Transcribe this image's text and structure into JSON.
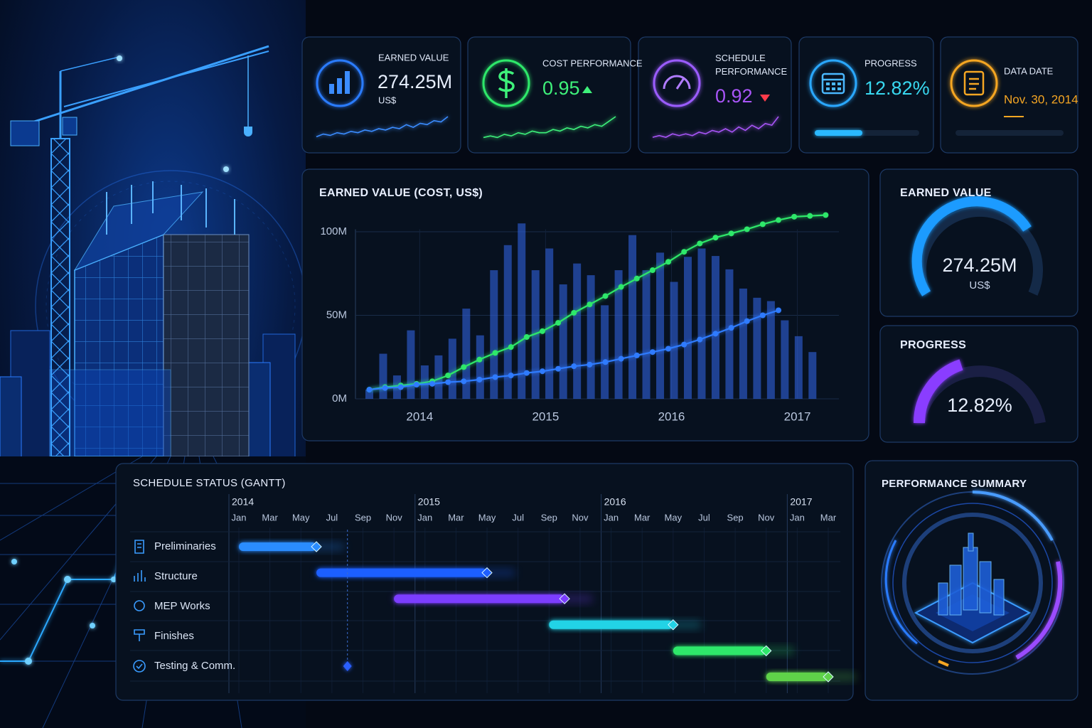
{
  "kpis": [
    {
      "label": "EARNED VALUE",
      "value": "274.25M",
      "unit": "US$",
      "trend": [
        3,
        5,
        4,
        6,
        5,
        7,
        6,
        8,
        7,
        9,
        8,
        10,
        9,
        12,
        10,
        13,
        12,
        15,
        14,
        18
      ]
    },
    {
      "label": "COST PERFORMANCE",
      "value": "0.95",
      "trend": [
        2,
        3,
        2,
        4,
        3,
        5,
        4,
        6,
        5,
        5,
        7,
        6,
        8,
        7,
        9,
        8,
        10,
        9,
        12,
        15
      ]
    },
    {
      "label": "SCHEDULE PERFORMANCE",
      "value": "0.92",
      "trend": [
        2,
        3,
        2,
        4,
        3,
        4,
        3,
        5,
        4,
        6,
        5,
        7,
        5,
        8,
        6,
        9,
        7,
        10,
        9,
        14
      ]
    },
    {
      "label": "PROGRESS",
      "value": "12.82%"
    },
    {
      "label": "DATA DATE",
      "value": "Nov. 30, 2014"
    }
  ],
  "chart_data": [
    {
      "type": "bar",
      "title": "EARNED VALUE (COST, US$)",
      "xlim": [
        2013.49,
        2017.33
      ],
      "xticks": [
        2014,
        2015,
        2016,
        2017
      ],
      "ylim": [
        0,
        110
      ],
      "yticks": [
        {
          "value": 0,
          "label": "0M"
        },
        {
          "value": 50,
          "label": "50M"
        },
        {
          "value": 100,
          "label": "100M"
        }
      ],
      "grid": true,
      "series": [
        {
          "type": "bar",
          "color": "#2f5fd8",
          "x": [
            2013.6,
            2013.71,
            2013.82,
            2013.93,
            2014.04,
            2014.15,
            2014.26,
            2014.37,
            2014.48,
            2014.59,
            2014.7,
            2014.81,
            2014.92,
            2015.03,
            2015.14,
            2015.25,
            2015.36,
            2015.47,
            2015.58,
            2015.69,
            2015.8,
            2015.91,
            2016.02,
            2016.13,
            2016.24,
            2016.35,
            2016.46,
            2016.57,
            2016.68,
            2016.79,
            2016.9,
            2017.01,
            2017.12
          ],
          "values": [
            5.5,
            27,
            14,
            41,
            20,
            26,
            36,
            54,
            38,
            77,
            92,
            105,
            77,
            90,
            68.5,
            81,
            74,
            56,
            77,
            98,
            77,
            87.5,
            70,
            85,
            90,
            85.5,
            77.5,
            66,
            60.5,
            58.5,
            47,
            37.5,
            28
          ]
        },
        {
          "type": "line",
          "color": "#2ee86a",
          "x": [
            2013.6,
            2013.725,
            2013.85,
            2013.975,
            2014.1,
            2014.225,
            2014.35,
            2014.475,
            2014.6,
            2014.725,
            2014.85,
            2014.975,
            2015.1,
            2015.225,
            2015.35,
            2015.475,
            2015.6,
            2015.725,
            2015.85,
            2015.975,
            2016.1,
            2016.225,
            2016.35,
            2016.475,
            2016.6,
            2016.725,
            2016.85,
            2016.975,
            2017.1,
            2017.225
          ],
          "values": [
            5.5,
            7,
            8,
            9,
            10.5,
            14,
            19,
            23.5,
            27.5,
            31,
            37,
            40.5,
            45.5,
            51.5,
            56.5,
            61.5,
            67,
            72,
            77,
            82,
            88,
            93,
            96.5,
            99,
            101.5,
            104.5,
            107,
            109,
            109.5,
            110
          ]
        },
        {
          "type": "line",
          "color": "#2f7bff",
          "x": [
            2013.6,
            2013.725,
            2013.85,
            2013.975,
            2014.1,
            2014.225,
            2014.35,
            2014.475,
            2014.6,
            2014.725,
            2014.85,
            2014.975,
            2015.1,
            2015.225,
            2015.35,
            2015.475,
            2015.6,
            2015.725,
            2015.85,
            2015.975,
            2016.1,
            2016.225,
            2016.35,
            2016.475,
            2016.6,
            2016.725,
            2016.85
          ],
          "values": [
            5.5,
            6.5,
            7,
            8.5,
            9,
            10,
            10.5,
            11.5,
            13,
            14,
            15.5,
            16.5,
            18,
            19.5,
            20.5,
            22,
            24,
            26,
            28,
            30,
            32.5,
            35.5,
            39,
            42.5,
            46.5,
            50,
            53
          ]
        }
      ]
    },
    {
      "type": "gantt",
      "title": "SCHEDULE STATUS (GANTT)",
      "xlim": [
        "2014-01",
        "2017-03"
      ],
      "year_ticks": [
        {
          "value": "2014-01",
          "label": "2014"
        },
        {
          "value": "2015-01",
          "label": "2015"
        },
        {
          "value": "2016-01",
          "label": "2016"
        },
        {
          "value": "2017-01",
          "label": "2017"
        }
      ],
      "xticks": [
        {
          "value": "2014-01",
          "label": "Jan"
        },
        {
          "value": "2014-03",
          "label": "Mar"
        },
        {
          "value": "2014-05",
          "label": "May"
        },
        {
          "value": "2014-07",
          "label": "Jul"
        },
        {
          "value": "2014-09",
          "label": "Sep"
        },
        {
          "value": "2014-11",
          "label": "Nov"
        },
        {
          "value": "2015-01",
          "label": "Jan"
        },
        {
          "value": "2015-03",
          "label": "Mar"
        },
        {
          "value": "2015-05",
          "label": "May"
        },
        {
          "value": "2015-07",
          "label": "Jul"
        },
        {
          "value": "2015-09",
          "label": "Sep"
        },
        {
          "value": "2015-11",
          "label": "Nov"
        },
        {
          "value": "2016-01",
          "label": "Jan"
        },
        {
          "value": "2016-03",
          "label": "Mar"
        },
        {
          "value": "2016-05",
          "label": "May"
        },
        {
          "value": "2016-07",
          "label": "Jul"
        },
        {
          "value": "2016-09",
          "label": "Sep"
        },
        {
          "value": "2016-11",
          "label": "Nov"
        },
        {
          "value": "2017-01",
          "label": "Jan"
        },
        {
          "value": "2017-03",
          "label": "Mar"
        }
      ],
      "tasks": [
        {
          "name": "Preliminaries",
          "start": "2014-01",
          "end": "2014-06",
          "color": "#2a8cff"
        },
        {
          "name": "Structure",
          "start": "2014-06",
          "end": "2015-05",
          "color": "#1f5fff"
        },
        {
          "name": "MEP Works",
          "start": "2014-11",
          "end": "2015-10",
          "color": "#7b3cff"
        },
        {
          "name": "Finishes",
          "start": "2015-09",
          "end": "2016-05",
          "color": "#22d3e6"
        },
        {
          "name": "Testing & Comm.",
          "start": "2016-05",
          "end": "2016-11",
          "color": "#2ee86a"
        },
        {
          "name": null,
          "start": "2016-11",
          "end": "2017-03",
          "color": "#5fd24a"
        }
      ],
      "milestone": "2014-08"
    }
  ],
  "gauges": [
    {
      "title": "EARNED VALUE",
      "value": "274.25M",
      "unit": "US$"
    },
    {
      "title": "PROGRESS",
      "value": "12.82%"
    }
  ],
  "summary": {
    "title": "PERFORMANCE SUMMARY"
  }
}
